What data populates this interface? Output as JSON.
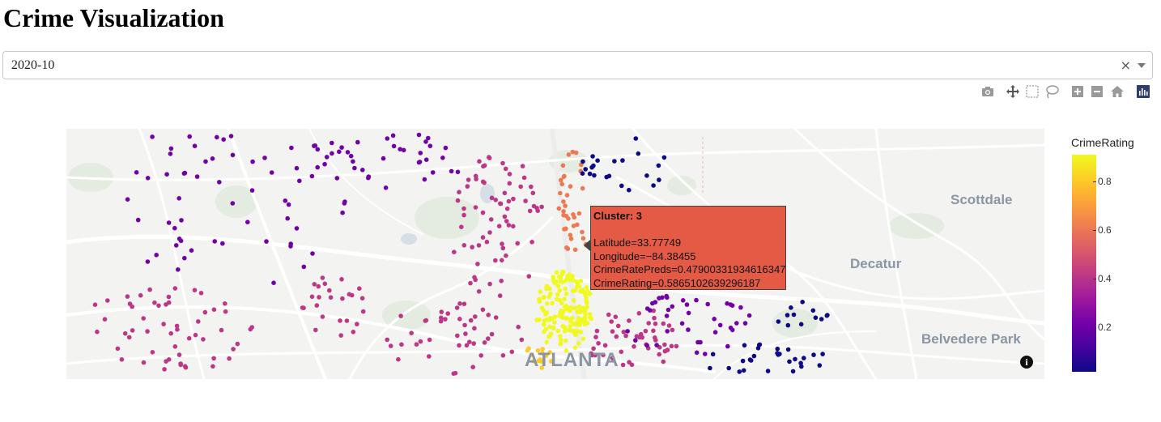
{
  "page": {
    "title": "Crime Visualization"
  },
  "selector": {
    "value": "2020-10",
    "clear_glyph": "×"
  },
  "modebar": {
    "buttons": [
      "camera-icon",
      "pan-icon",
      "box-select-icon",
      "lasso-select-icon",
      "zoom-in-icon",
      "zoom-out-icon",
      "reset-home-icon",
      "plotly-logo-icon"
    ]
  },
  "map": {
    "place_labels": [
      "Scottdale",
      "Decatur",
      "Belvedere Park",
      "ATLANTA"
    ],
    "info_glyph": "i"
  },
  "hover": {
    "title": "Cluster: 3",
    "lines": [
      "Latitude=33.77749",
      "Longitude=−84.38455",
      "CrimeRatePreds=0.47900331934616347",
      "CrimeRating=0.5865102639296187"
    ]
  },
  "colorbar": {
    "title": "CrimeRating",
    "ticks": [
      "0.8",
      "0.6",
      "0.4",
      "0.2"
    ],
    "colors": [
      "#0d0887",
      "#7201a8",
      "#bd3786",
      "#ed7953",
      "#fdca26",
      "#f0f921"
    ]
  }
}
